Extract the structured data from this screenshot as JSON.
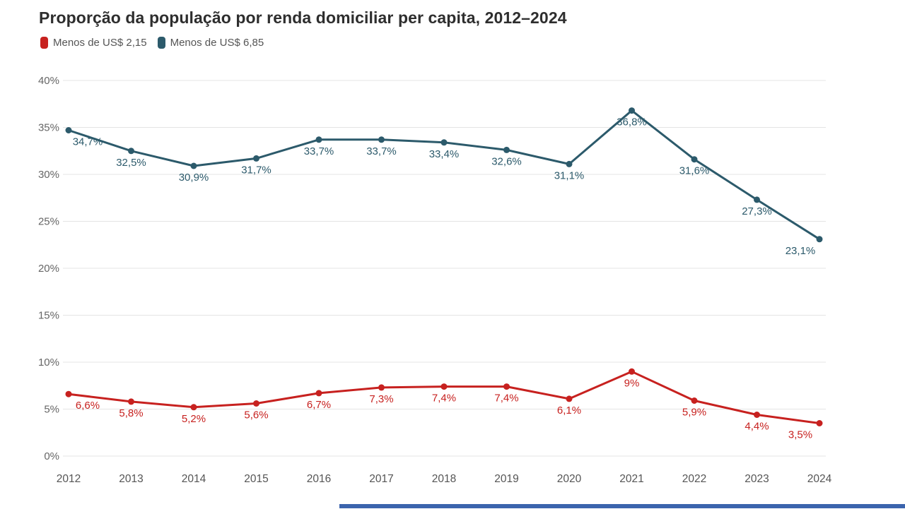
{
  "title": "Proporção da população por renda domiciliar per capita, 2012–2024",
  "legend": {
    "items": [
      {
        "label": "Menos de US$ 2,15",
        "color": "#c7211f"
      },
      {
        "label": "Menos de US$ 6,85",
        "color": "#2c5a6b"
      }
    ]
  },
  "colors": {
    "grid": "#e4e4e4",
    "axis_label": "#666666",
    "year_label": "#555555",
    "footer_bar": "#3b64ad"
  },
  "chart_data": {
    "type": "line",
    "title": "Proporção da população por renda domiciliar per capita, 2012–2024",
    "x": [
      "2012",
      "2013",
      "2014",
      "2015",
      "2016",
      "2017",
      "2018",
      "2019",
      "2020",
      "2021",
      "2022",
      "2023",
      "2024"
    ],
    "series": [
      {
        "name": "Menos de US$ 2,15",
        "color": "#c7211f",
        "values": [
          6.6,
          5.8,
          5.2,
          5.6,
          6.7,
          7.3,
          7.4,
          7.4,
          6.1,
          9,
          5.9,
          4.4,
          3.5
        ],
        "labels": [
          "6,6%",
          "5,8%",
          "5,2%",
          "5,6%",
          "6,7%",
          "7,3%",
          "7,4%",
          "7,4%",
          "6,1%",
          "9%",
          "5,9%",
          "4,4%",
          "3,5%"
        ]
      },
      {
        "name": "Menos de US$ 6,85",
        "color": "#2c5a6b",
        "values": [
          34.7,
          32.5,
          30.9,
          31.7,
          33.7,
          33.7,
          33.4,
          32.6,
          31.1,
          36.8,
          31.6,
          27.3,
          23.1
        ],
        "labels": [
          "34,7%",
          "32,5%",
          "30,9%",
          "31,7%",
          "33,7%",
          "33,7%",
          "33,4%",
          "32,6%",
          "31,1%",
          "36,8%",
          "31,6%",
          "27,3%",
          "23,1%"
        ]
      }
    ],
    "ylim": [
      0,
      40
    ],
    "yticks": [
      0,
      5,
      10,
      15,
      20,
      25,
      30,
      35,
      40
    ],
    "ytick_labels": [
      "0%",
      "5%",
      "10%",
      "15%",
      "20%",
      "25%",
      "30%",
      "35%",
      "40%"
    ],
    "xlabel": "",
    "ylabel": "",
    "grid": true,
    "legend_position": "top-left",
    "data_label_position": "below-point"
  }
}
